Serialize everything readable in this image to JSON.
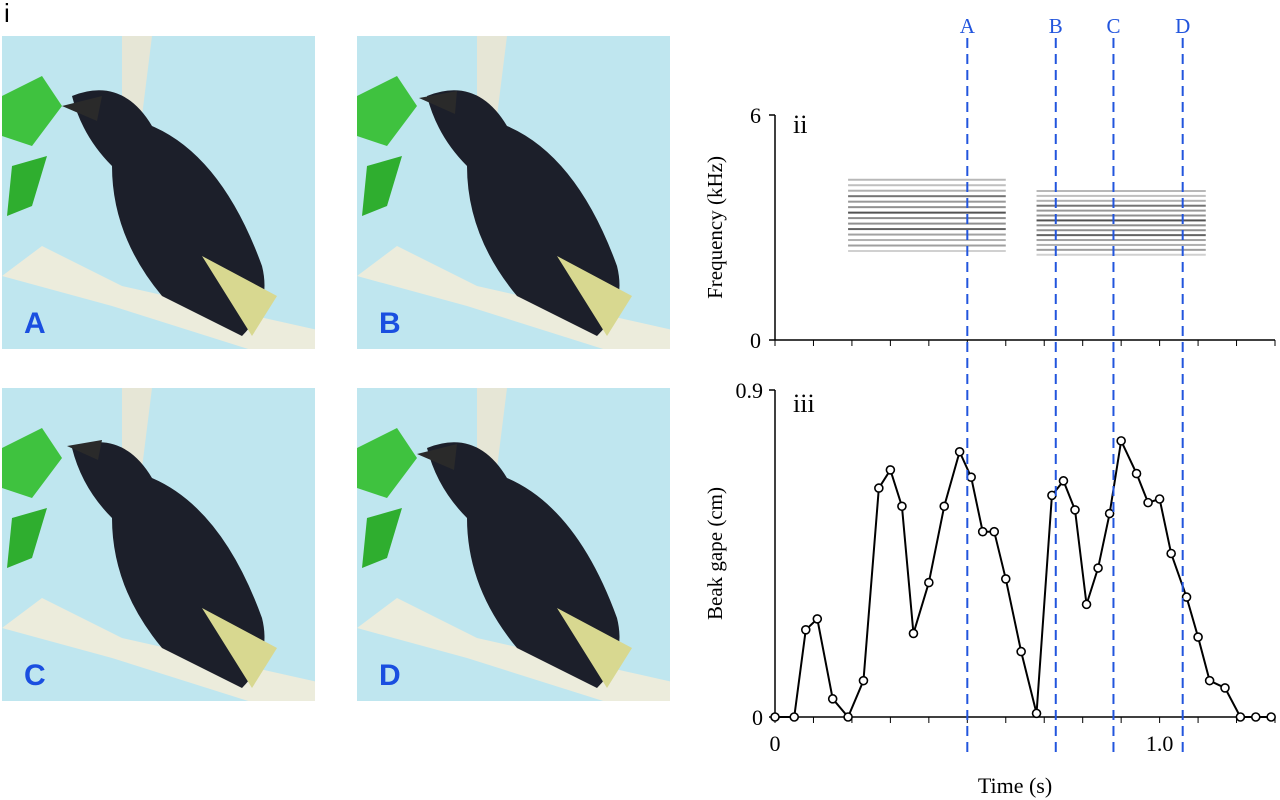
{
  "panel_i_label": "i",
  "photos": [
    {
      "letter": "A"
    },
    {
      "letter": "B"
    },
    {
      "letter": "C"
    },
    {
      "letter": "D"
    }
  ],
  "colors": {
    "marker_line": "#2255dd",
    "trace": "#000000",
    "sky": "#bfe6ef",
    "photo_letter": "#1a4fe0"
  },
  "chart_data": [
    {
      "type": "spectrogram",
      "panel_label": "ii",
      "ylabel": "Frequency (kHz)",
      "ylim": [
        0,
        6
      ],
      "yticks": [
        "0",
        "6"
      ],
      "xlim": [
        0,
        1.3
      ],
      "syllables": [
        {
          "t_start": 0.19,
          "t_end": 0.6,
          "f_low": 2.4,
          "f_high": 4.3
        },
        {
          "t_start": 0.68,
          "t_end": 1.12,
          "f_low": 2.3,
          "f_high": 4.0
        }
      ]
    },
    {
      "type": "line",
      "panel_label": "iii",
      "ylabel": "Beak gape (cm)",
      "xlabel": "Time (s)",
      "xlim": [
        0,
        1.3
      ],
      "ylim": [
        0,
        0.9
      ],
      "yticks": [
        "0",
        "0.9"
      ],
      "xticks": [
        {
          "value": 0,
          "label": "0"
        },
        {
          "value": 1.0,
          "label": "1.0"
        }
      ],
      "x": [
        0,
        0.05,
        0.08,
        0.11,
        0.15,
        0.19,
        0.23,
        0.27,
        0.3,
        0.33,
        0.36,
        0.4,
        0.44,
        0.48,
        0.51,
        0.54,
        0.57,
        0.6,
        0.64,
        0.68,
        0.72,
        0.75,
        0.78,
        0.81,
        0.84,
        0.87,
        0.9,
        0.94,
        0.97,
        1.0,
        1.03,
        1.07,
        1.1,
        1.13,
        1.17,
        1.21,
        1.25,
        1.29
      ],
      "y": [
        0.0,
        0.0,
        0.24,
        0.27,
        0.05,
        0.0,
        0.1,
        0.63,
        0.68,
        0.58,
        0.23,
        0.37,
        0.58,
        0.73,
        0.66,
        0.51,
        0.51,
        0.38,
        0.18,
        0.01,
        0.61,
        0.65,
        0.57,
        0.31,
        0.41,
        0.56,
        0.76,
        0.67,
        0.59,
        0.6,
        0.45,
        0.33,
        0.22,
        0.1,
        0.08,
        0.0,
        0.0,
        0.0
      ],
      "markers": [
        {
          "label": "A",
          "x": 0.5
        },
        {
          "label": "B",
          "x": 0.73
        },
        {
          "label": "C",
          "x": 0.88
        },
        {
          "label": "D",
          "x": 1.06
        }
      ]
    }
  ]
}
